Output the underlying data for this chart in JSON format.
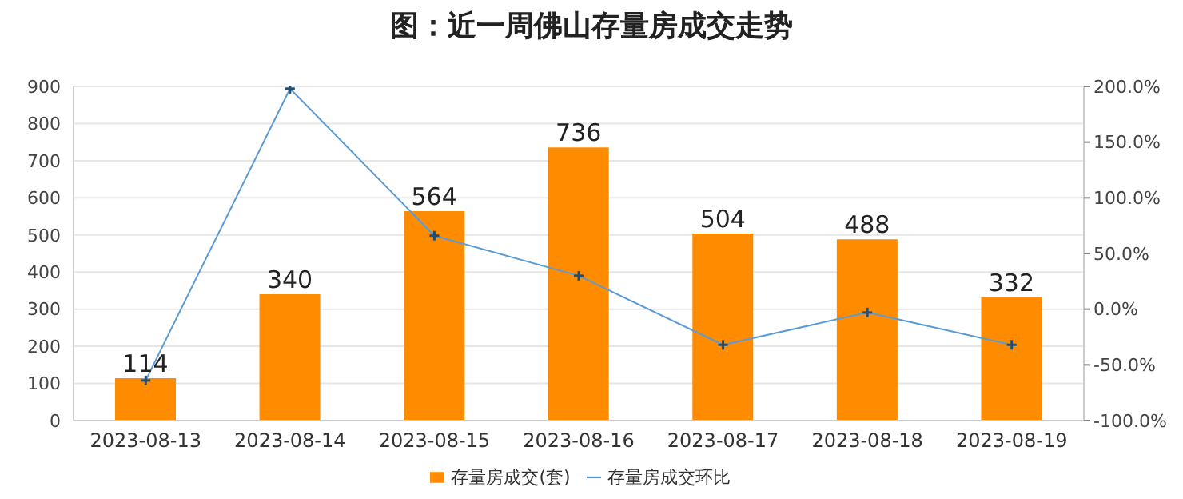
{
  "chart_data": {
    "type": "bar",
    "title": "图：近一周佛山存量房成交走势",
    "categories": [
      "2023-08-13",
      "2023-08-14",
      "2023-08-15",
      "2023-08-16",
      "2023-08-17",
      "2023-08-18",
      "2023-08-19"
    ],
    "series": [
      {
        "name": "存量房成交(套)",
        "color": "#ff8c00",
        "values": [
          114,
          340,
          564,
          736,
          504,
          488,
          332
        ],
        "value_labels": [
          "114",
          "340",
          "564",
          "736",
          "504",
          "488",
          "332"
        ]
      },
      {
        "name": "存量房成交环比",
        "type": "line",
        "axis": "y2",
        "color": "#5b9bd5",
        "marker": "cross",
        "values": [
          -64,
          198,
          66,
          30,
          -32,
          -3,
          -32
        ]
      }
    ],
    "ylim": [
      0,
      900
    ],
    "yticks": [
      0,
      100,
      200,
      300,
      400,
      500,
      600,
      700,
      800,
      900
    ],
    "y2lim": [
      -100,
      200
    ],
    "y2ticks": [
      {
        "value": -100,
        "label": "-100.0%"
      },
      {
        "value": -50,
        "label": "-50.0%"
      },
      {
        "value": 0,
        "label": "0.0%"
      },
      {
        "value": 50,
        "label": "50.0%"
      },
      {
        "value": 100,
        "label": "100.0%"
      },
      {
        "value": 150,
        "label": "150.0%"
      },
      {
        "value": 200,
        "label": "200.0%"
      }
    ],
    "grid": "y",
    "legend": "bottom"
  }
}
